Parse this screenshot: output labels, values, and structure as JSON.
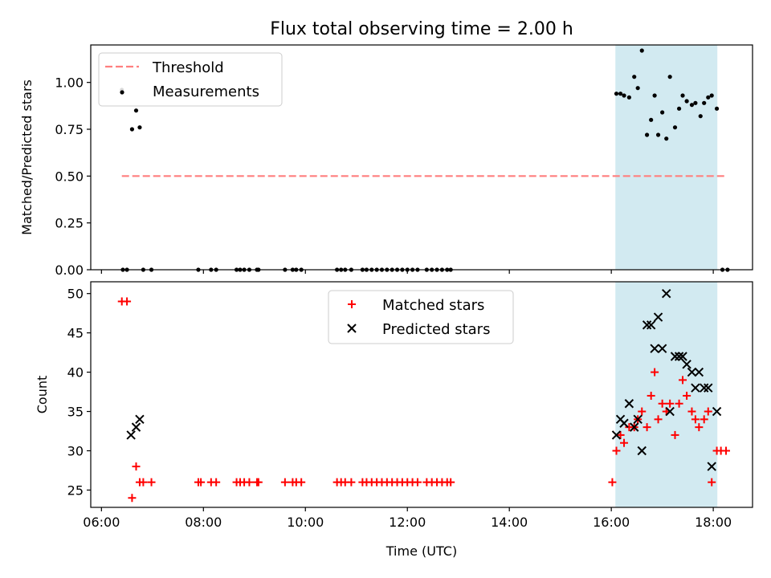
{
  "title": "Flux total observing time = 2.00 h",
  "colors": {
    "threshold": "#ff7f7f",
    "measurement": "#000000",
    "matched": "#ff0000",
    "predicted": "#000000",
    "span": "#add8e6"
  },
  "chart_data": [
    {
      "type": "scatter",
      "ylabel": "Matched/Predicted stars",
      "xlim": [
        5.79,
        18.77
      ],
      "ylim": [
        0.0,
        1.2
      ],
      "ytick_labels": [
        "0.00",
        "0.25",
        "0.50",
        "0.75",
        "1.00"
      ],
      "yticks": [
        0,
        0.25,
        0.5,
        0.75,
        1.0
      ],
      "highlight_span": [
        16.08,
        18.08
      ],
      "threshold": {
        "name": "Threshold",
        "y": 0.5,
        "x_range": [
          6.4,
          18.25
        ],
        "style": "dashed"
      },
      "legend": {
        "position": "top-left",
        "entries": [
          "Threshold",
          "Measurements"
        ]
      },
      "series": [
        {
          "name": "Measurements",
          "marker": "dot",
          "points": [
            [
              6.4,
              0.96
            ],
            [
              6.6,
              0.75
            ],
            [
              6.68,
              0.85
            ],
            [
              6.75,
              0.76
            ],
            [
              6.42,
              0
            ],
            [
              6.5,
              0
            ],
            [
              6.82,
              0
            ],
            [
              6.98,
              0
            ],
            [
              7.9,
              0
            ],
            [
              8.15,
              0
            ],
            [
              8.25,
              0
            ],
            [
              8.65,
              0
            ],
            [
              8.72,
              0
            ],
            [
              8.8,
              0
            ],
            [
              8.9,
              0
            ],
            [
              9.05,
              0
            ],
            [
              9.08,
              0
            ],
            [
              9.6,
              0
            ],
            [
              9.75,
              0
            ],
            [
              9.82,
              0
            ],
            [
              9.92,
              0
            ],
            [
              10.62,
              0
            ],
            [
              10.7,
              0
            ],
            [
              10.78,
              0
            ],
            [
              10.9,
              0
            ],
            [
              11.12,
              0
            ],
            [
              11.2,
              0
            ],
            [
              11.3,
              0
            ],
            [
              11.4,
              0
            ],
            [
              11.5,
              0
            ],
            [
              11.6,
              0
            ],
            [
              11.7,
              0
            ],
            [
              11.8,
              0
            ],
            [
              11.9,
              0
            ],
            [
              12.0,
              0
            ],
            [
              12.1,
              0
            ],
            [
              12.2,
              0
            ],
            [
              12.38,
              0
            ],
            [
              12.48,
              0
            ],
            [
              12.58,
              0
            ],
            [
              12.68,
              0
            ],
            [
              12.78,
              0
            ],
            [
              12.85,
              0
            ],
            [
              18.18,
              0
            ],
            [
              18.28,
              0
            ],
            [
              16.1,
              0.94
            ],
            [
              16.18,
              0.94
            ],
            [
              16.25,
              0.93
            ],
            [
              16.35,
              0.92
            ],
            [
              16.45,
              1.03
            ],
            [
              16.52,
              0.97
            ],
            [
              16.6,
              1.17
            ],
            [
              16.7,
              0.72
            ],
            [
              16.78,
              0.8
            ],
            [
              16.85,
              0.93
            ],
            [
              16.92,
              0.72
            ],
            [
              17.0,
              0.84
            ],
            [
              17.08,
              0.7
            ],
            [
              17.15,
              1.03
            ],
            [
              17.25,
              0.76
            ],
            [
              17.33,
              0.86
            ],
            [
              17.4,
              0.93
            ],
            [
              17.48,
              0.9
            ],
            [
              17.58,
              0.88
            ],
            [
              17.65,
              0.89
            ],
            [
              17.75,
              0.82
            ],
            [
              17.82,
              0.89
            ],
            [
              17.9,
              0.92
            ],
            [
              17.97,
              0.93
            ],
            [
              18.07,
              0.86
            ]
          ]
        }
      ]
    },
    {
      "type": "scatter",
      "xlabel": "Time (UTC)",
      "ylabel": "Count",
      "xlim": [
        5.79,
        18.77
      ],
      "ylim": [
        22.8,
        51.5
      ],
      "xticks": [
        6,
        8,
        10,
        12,
        14,
        16,
        18
      ],
      "xtick_labels": [
        "06:00",
        "08:00",
        "10:00",
        "12:00",
        "14:00",
        "16:00",
        "18:00"
      ],
      "yticks": [
        25,
        30,
        35,
        40,
        45,
        50
      ],
      "ytick_labels": [
        "25",
        "30",
        "35",
        "40",
        "45",
        "50"
      ],
      "highlight_span": [
        16.08,
        18.08
      ],
      "legend": {
        "position": "top-center",
        "entries": [
          "Matched stars",
          "Predicted stars"
        ]
      },
      "series": [
        {
          "name": "Matched stars",
          "marker": "plus",
          "points": [
            [
              6.4,
              49
            ],
            [
              6.5,
              49
            ],
            [
              6.6,
              24
            ],
            [
              6.68,
              28
            ],
            [
              6.75,
              26
            ],
            [
              6.82,
              26
            ],
            [
              6.98,
              26
            ],
            [
              7.9,
              26
            ],
            [
              7.95,
              26
            ],
            [
              8.15,
              26
            ],
            [
              8.25,
              26
            ],
            [
              8.65,
              26
            ],
            [
              8.72,
              26
            ],
            [
              8.8,
              26
            ],
            [
              8.9,
              26
            ],
            [
              9.05,
              26
            ],
            [
              9.08,
              26
            ],
            [
              9.6,
              26
            ],
            [
              9.75,
              26
            ],
            [
              9.82,
              26
            ],
            [
              9.92,
              26
            ],
            [
              10.62,
              26
            ],
            [
              10.7,
              26
            ],
            [
              10.78,
              26
            ],
            [
              10.9,
              26
            ],
            [
              11.12,
              26
            ],
            [
              11.2,
              26
            ],
            [
              11.3,
              26
            ],
            [
              11.4,
              26
            ],
            [
              11.5,
              26
            ],
            [
              11.6,
              26
            ],
            [
              11.7,
              26
            ],
            [
              11.8,
              26
            ],
            [
              11.9,
              26
            ],
            [
              12.0,
              26
            ],
            [
              12.1,
              26
            ],
            [
              12.2,
              26
            ],
            [
              12.38,
              26
            ],
            [
              12.48,
              26
            ],
            [
              12.58,
              26
            ],
            [
              12.68,
              26
            ],
            [
              12.78,
              26
            ],
            [
              12.85,
              26
            ],
            [
              16.02,
              26
            ],
            [
              16.1,
              30
            ],
            [
              16.18,
              32
            ],
            [
              16.25,
              31
            ],
            [
              16.35,
              33
            ],
            [
              16.45,
              33
            ],
            [
              16.52,
              34
            ],
            [
              16.6,
              35
            ],
            [
              16.7,
              33
            ],
            [
              16.78,
              37
            ],
            [
              16.85,
              40
            ],
            [
              16.92,
              34
            ],
            [
              17.0,
              36
            ],
            [
              17.08,
              35
            ],
            [
              17.15,
              36
            ],
            [
              17.25,
              32
            ],
            [
              17.33,
              36
            ],
            [
              17.4,
              39
            ],
            [
              17.48,
              37
            ],
            [
              17.58,
              35
            ],
            [
              17.65,
              34
            ],
            [
              17.72,
              33
            ],
            [
              17.82,
              34
            ],
            [
              17.9,
              35
            ],
            [
              17.97,
              26
            ],
            [
              18.07,
              30
            ],
            [
              18.15,
              30
            ],
            [
              18.25,
              30
            ]
          ]
        },
        {
          "name": "Predicted stars",
          "marker": "x",
          "points": [
            [
              6.58,
              32
            ],
            [
              6.68,
              33
            ],
            [
              6.75,
              34
            ],
            [
              16.1,
              32
            ],
            [
              16.18,
              34
            ],
            [
              16.25,
              33.5
            ],
            [
              16.35,
              36
            ],
            [
              16.45,
              33
            ],
            [
              16.52,
              34
            ],
            [
              16.6,
              30
            ],
            [
              16.7,
              46
            ],
            [
              16.78,
              46
            ],
            [
              16.85,
              43
            ],
            [
              16.92,
              47
            ],
            [
              17.0,
              43
            ],
            [
              17.08,
              50
            ],
            [
              17.15,
              35
            ],
            [
              17.25,
              42
            ],
            [
              17.33,
              42
            ],
            [
              17.4,
              42
            ],
            [
              17.48,
              41
            ],
            [
              17.58,
              40
            ],
            [
              17.65,
              38
            ],
            [
              17.72,
              40
            ],
            [
              17.82,
              38
            ],
            [
              17.9,
              38
            ],
            [
              17.97,
              28
            ],
            [
              18.07,
              35
            ]
          ]
        }
      ]
    }
  ]
}
